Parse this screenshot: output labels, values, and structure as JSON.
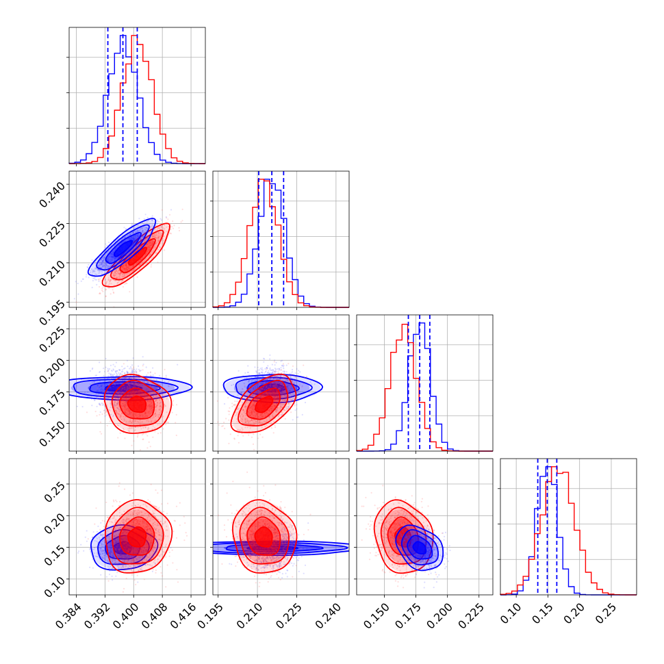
{
  "chart_data": {
    "type": "corner",
    "colors": {
      "model_a": "#0000ff",
      "model_b": "#ff0000"
    },
    "params": [
      {
        "range": [
          0.382,
          0.42
        ],
        "ticks": [
          "0.384",
          "0.392",
          "0.400",
          "0.408",
          "0.416"
        ],
        "tick_values": [
          0.384,
          0.392,
          0.4,
          0.408,
          0.416
        ]
      },
      {
        "range": [
          0.193,
          0.245
        ],
        "ticks": [
          "0.195",
          "0.210",
          "0.225",
          "0.240"
        ],
        "tick_values": [
          0.195,
          0.21,
          0.225,
          0.24
        ]
      },
      {
        "range": [
          0.128,
          0.236
        ],
        "ticks": [
          "0.150",
          "0.175",
          "0.200",
          "0.225"
        ],
        "tick_values": [
          0.15,
          0.175,
          0.2,
          0.225
        ]
      },
      {
        "range": [
          0.075,
          0.29
        ],
        "ticks": [
          "0.10",
          "0.15",
          "0.20",
          "0.25"
        ],
        "tick_values": [
          0.1,
          0.15,
          0.2,
          0.25
        ]
      }
    ],
    "series": [
      {
        "name": "blue",
        "color": "#0000ff",
        "mean": [
          0.397,
          0.2155,
          0.178,
          0.149
        ],
        "sd": [
          0.0042,
          0.005,
          0.0085,
          0.016
        ],
        "quantiles": [
          [
            0.3928,
            0.397,
            0.401
          ],
          [
            0.2105,
            0.2155,
            0.22
          ],
          [
            0.169,
            0.178,
            0.186
          ],
          [
            0.134,
            0.149,
            0.164
          ]
        ]
      },
      {
        "name": "red",
        "color": "#ff0000",
        "mean": [
          0.401,
          0.2125,
          0.165,
          0.166
        ],
        "sd": [
          0.0042,
          0.0055,
          0.0105,
          0.026
        ]
      }
    ],
    "correlations": {
      "blue": {
        "1-0": 0.85,
        "2-0": 0.0,
        "2-1": 0.0,
        "3-0": 0.05,
        "3-1": 0.0,
        "3-2": -0.3
      },
      "red": {
        "1-0": 0.85,
        "2-0": -0.1,
        "2-1": 0.5,
        "3-0": 0.05,
        "3-1": -0.1,
        "3-2": -0.15
      }
    }
  }
}
